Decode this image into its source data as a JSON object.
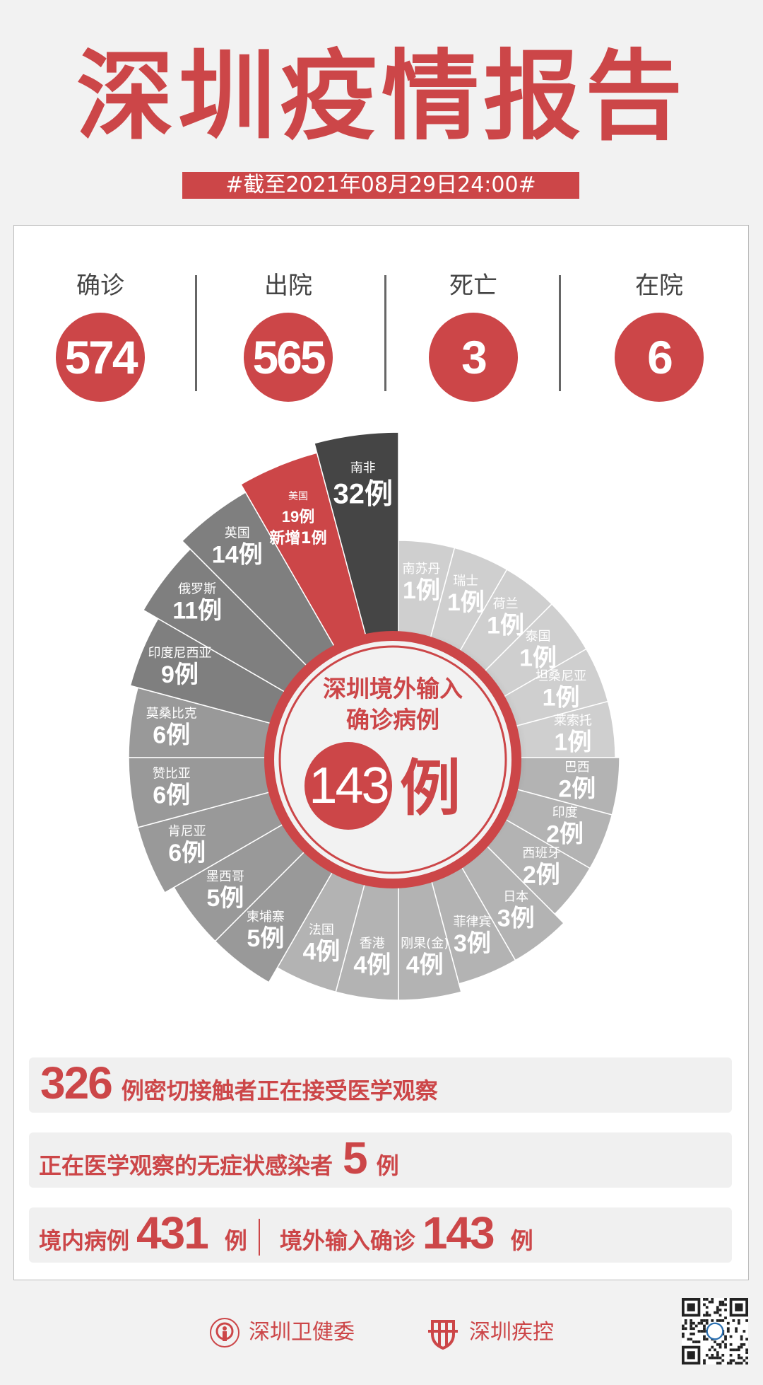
{
  "title": "深圳疫情报告",
  "date_bar": "#截至2021年08月29日24:00#",
  "stats": [
    {
      "label": "确诊",
      "value": "574"
    },
    {
      "label": "出院",
      "value": "565"
    },
    {
      "label": "死亡",
      "value": "3"
    },
    {
      "label": "在院",
      "value": "6"
    }
  ],
  "colors": {
    "accent": "#cc4648",
    "light": "#cfcfcf",
    "mid": "#b3b3b3",
    "dark": "#999999",
    "darker": "#7f7f7f",
    "darkest": "#454545"
  },
  "chart_data": {
    "type": "radial-bar",
    "title": "深圳境外输入确诊病例",
    "title_lines": [
      "深圳境外输入",
      "确诊病例"
    ],
    "total": "143",
    "unit": "例",
    "categories": [
      "南苏丹",
      "瑞士",
      "荷兰",
      "泰国",
      "坦桑尼亚",
      "莱索托",
      "巴西",
      "印度",
      "西班牙",
      "日本",
      "菲律宾",
      "刚果(金)",
      "香港",
      "法国",
      "柬埔寨",
      "墨西哥",
      "肯尼亚",
      "赞比亚",
      "莫桑比克",
      "印度尼西亚",
      "俄罗斯",
      "英国",
      "美国",
      "南非"
    ],
    "values": [
      1,
      1,
      1,
      1,
      1,
      1,
      2,
      2,
      2,
      3,
      3,
      4,
      4,
      4,
      5,
      5,
      6,
      6,
      6,
      9,
      11,
      14,
      19,
      32
    ],
    "annotations": {
      "美国": "新增1例"
    },
    "highlight": {
      "美国": "#cc4648",
      "南非": "#454545"
    }
  },
  "summary": {
    "contacts": {
      "value": "326",
      "text": "例密切接触者正在接受医学观察"
    },
    "asymptomatic": {
      "text": "正在医学观察的无症状感染者",
      "value": "5",
      "unit": "例"
    },
    "local": {
      "label": "境内病例",
      "value": "431",
      "unit": "例"
    },
    "imported": {
      "label": "境外输入确诊",
      "value": "143",
      "unit": "例"
    }
  },
  "footer": {
    "org1": "深圳卫健委",
    "org2": "深圳疾控",
    "qr_icon": "qr-code-icon"
  }
}
